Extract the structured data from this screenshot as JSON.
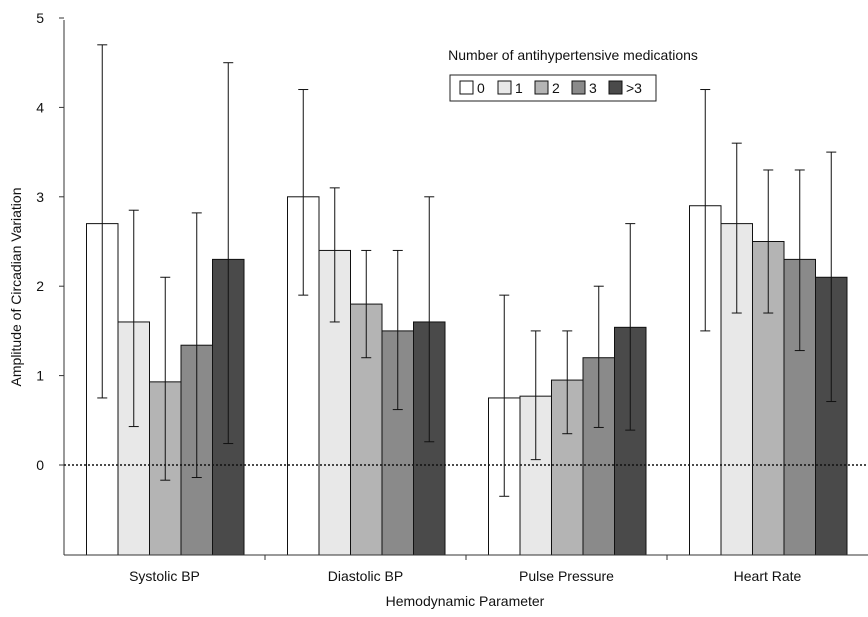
{
  "chart_data": {
    "type": "bar",
    "title": "",
    "xlabel": "Hemodynamic Parameter",
    "ylabel": "Amplitude of Circadian Variation",
    "ylim": [
      -0.9,
      5
    ],
    "y_ticks": [
      "0",
      "1",
      "2",
      "3",
      "4",
      "5"
    ],
    "y_tick_values": [
      0,
      1,
      2,
      3,
      4,
      5
    ],
    "categories": [
      "Systolic BP",
      "Diastolic BP",
      "Pulse Pressure",
      "Heart Rate"
    ],
    "legend_title": "Number of antihypertensive medications",
    "legend_position": "top-right",
    "reference_line": {
      "y": 0,
      "style": "dotted"
    },
    "series": [
      {
        "name": "0",
        "color": "#ffffff",
        "values": [
          2.7,
          3.0,
          0.75,
          2.9
        ],
        "err_low": [
          0.75,
          1.9,
          -0.35,
          1.5
        ],
        "err_high": [
          4.7,
          4.2,
          1.9,
          4.2
        ]
      },
      {
        "name": "1",
        "color": "#e8e8e8",
        "values": [
          1.6,
          2.4,
          0.77,
          2.7
        ],
        "err_low": [
          0.43,
          1.6,
          0.06,
          1.7
        ],
        "err_high": [
          2.85,
          3.1,
          1.5,
          3.6
        ]
      },
      {
        "name": "2",
        "color": "#b4b4b4",
        "values": [
          0.93,
          1.8,
          0.95,
          2.5
        ],
        "err_low": [
          -0.17,
          1.2,
          0.35,
          1.7
        ],
        "err_high": [
          2.1,
          2.4,
          1.5,
          3.3
        ]
      },
      {
        "name": "3",
        "color": "#8a8a8a",
        "values": [
          1.34,
          1.5,
          1.2,
          2.3
        ],
        "err_low": [
          -0.14,
          0.62,
          0.42,
          1.28
        ],
        "err_high": [
          2.82,
          2.4,
          2.0,
          3.3
        ]
      },
      {
        "name": ">3",
        "color": "#4a4a4a",
        "values": [
          2.3,
          1.6,
          1.54,
          2.1
        ],
        "err_low": [
          0.24,
          0.26,
          0.39,
          0.71
        ],
        "err_high": [
          4.5,
          3.0,
          2.7,
          3.5
        ]
      }
    ]
  }
}
